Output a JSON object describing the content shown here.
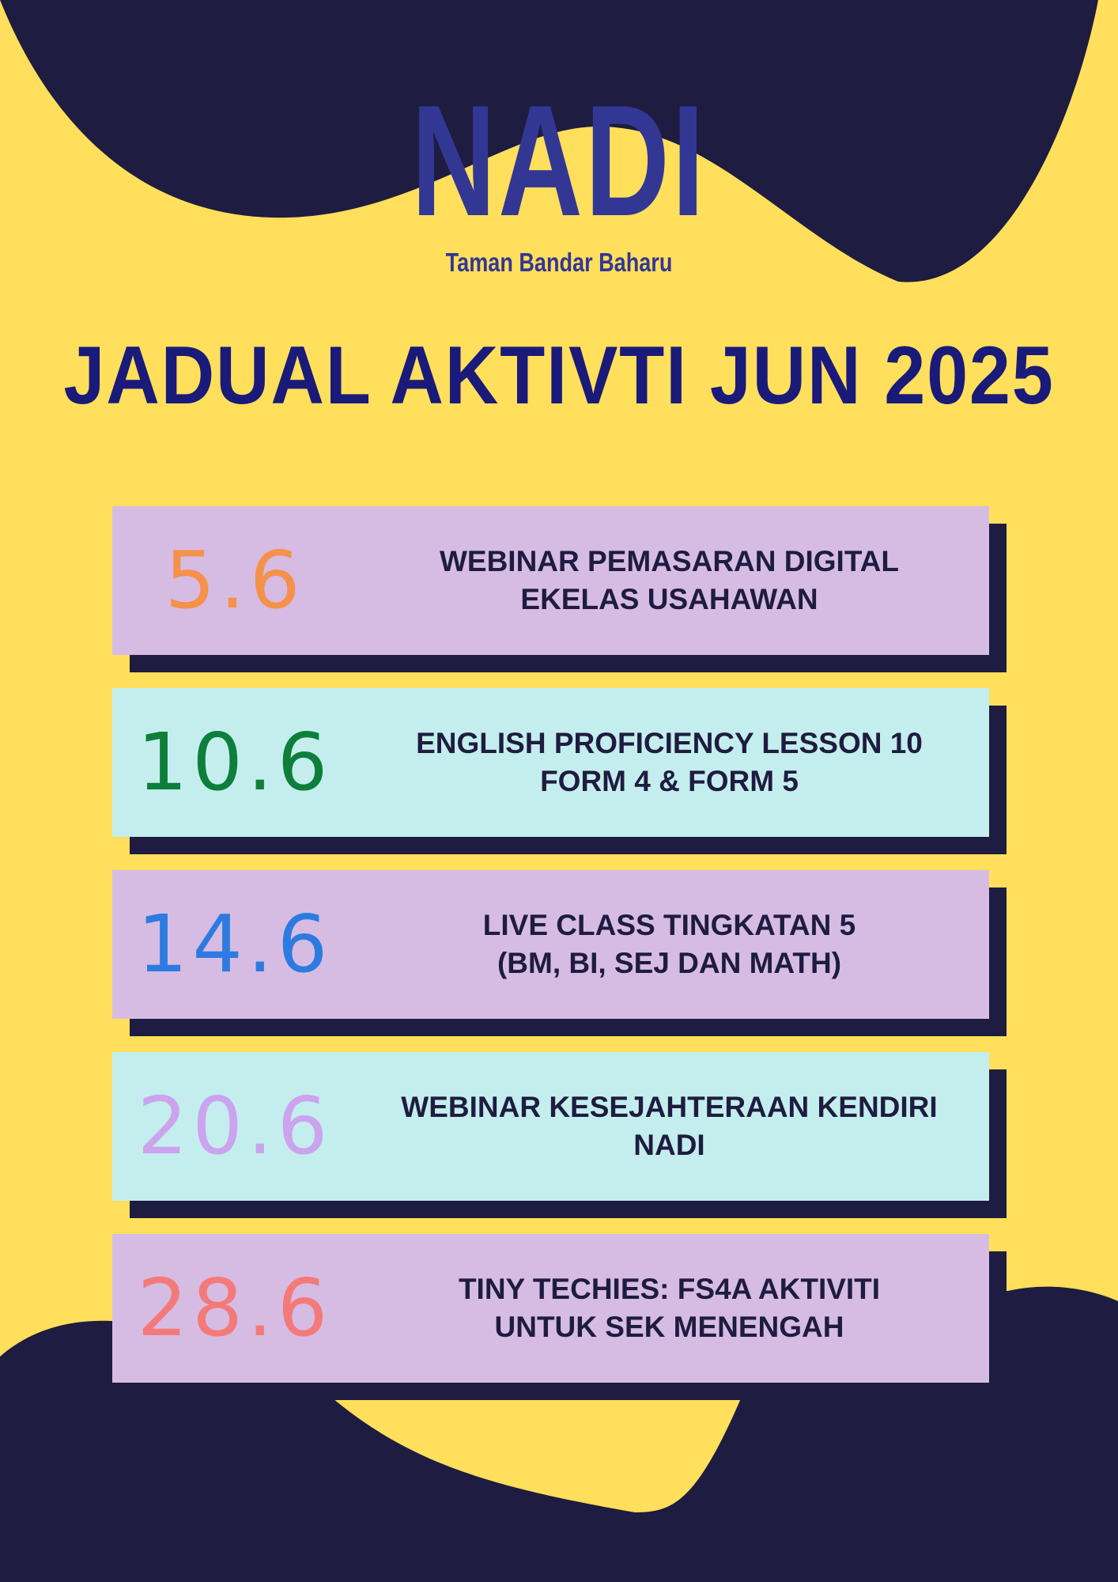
{
  "colors": {
    "background": "#FFDF5B",
    "dark": "#1E1C40",
    "purple_card": "#D6BCE3",
    "cyan_card": "#C4EEEE",
    "title": "#1A1A7A",
    "logo": "#333794"
  },
  "logo": {
    "name": "NADI",
    "location": "Taman Bandar Baharu"
  },
  "title": "JADUAL AKTIVTI JUN 2025",
  "activities": [
    {
      "date": "5.6",
      "line1": "WEBINAR PEMASARAN DIGITAL",
      "line2": "EKELAS USAHAWAN",
      "date_color": "#F5914A",
      "card_color": "#D6BCE3"
    },
    {
      "date": "10.6",
      "line1": "ENGLISH PROFICIENCY LESSON 10",
      "line2": "FORM 4 & FORM 5",
      "date_color": "#0D7F3A",
      "card_color": "#C4EEEE"
    },
    {
      "date": "14.6",
      "line1": "LIVE CLASS TINGKATAN 5",
      "line2": "(BM, BI, SEJ DAN MATH)",
      "date_color": "#2D7BE0",
      "card_color": "#D6BCE3"
    },
    {
      "date": "20.6",
      "line1": "WEBINAR KESEJAHTERAAN KENDIRI",
      "line2": "NADI",
      "date_color": "#CBA3EE",
      "card_color": "#C4EEEE"
    },
    {
      "date": "28.6",
      "line1": "TINY TECHIES: FS4A AKTIVITI",
      "line2": "UNTUK SEK MENENGAH",
      "date_color": "#F47A7A",
      "card_color": "#D6BCE3"
    }
  ]
}
